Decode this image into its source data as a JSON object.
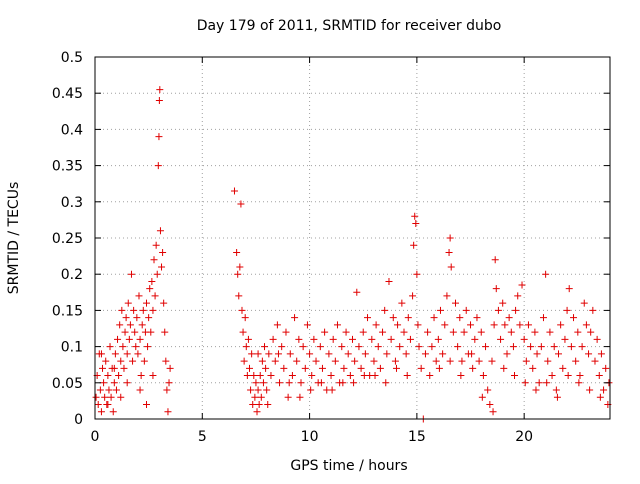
{
  "chart_data": {
    "type": "scatter",
    "title": "Day 179 of 2011, SRMTID for receiver dubo",
    "xlabel": "GPS time / hours",
    "ylabel": "SRMTID / TECUs",
    "xlim": [
      0,
      24
    ],
    "ylim": [
      0,
      0.5
    ],
    "xticks": [
      0,
      5,
      10,
      15,
      20
    ],
    "xtick_labels": [
      "0",
      "5",
      "10",
      "15",
      "20"
    ],
    "yticks": [
      0,
      0.05,
      0.1,
      0.15,
      0.2,
      0.25,
      0.3,
      0.35,
      0.4,
      0.45,
      0.5
    ],
    "ytick_labels": [
      "0",
      "0.05",
      "0.1",
      "0.15",
      "0.2",
      "0.25",
      "0.3",
      "0.35",
      "0.4",
      "0.45",
      "0.5"
    ],
    "grid": true,
    "marker": "plus",
    "color": "#e00000",
    "series": [
      {
        "name": "SRMTID",
        "points": [
          [
            0.05,
            0.03
          ],
          [
            0.1,
            0.06
          ],
          [
            0.15,
            0.02
          ],
          [
            0.2,
            0.09
          ],
          [
            0.25,
            0.04
          ],
          [
            0.3,
            0.01
          ],
          [
            0.35,
            0.07
          ],
          [
            0.4,
            0.05
          ],
          [
            0.45,
            0.03
          ],
          [
            0.5,
            0.08
          ],
          [
            0.55,
            0.02
          ],
          [
            0.6,
            0.06
          ],
          [
            0.65,
            0.04
          ],
          [
            0.7,
            0.1
          ],
          [
            0.75,
            0.03
          ],
          [
            0.8,
            0.07
          ],
          [
            0.85,
            0.01
          ],
          [
            0.9,
            0.05
          ],
          [
            0.95,
            0.09
          ],
          [
            1.0,
            0.04
          ],
          [
            1.05,
            0.11
          ],
          [
            1.1,
            0.06
          ],
          [
            1.15,
            0.13
          ],
          [
            1.2,
            0.08
          ],
          [
            1.25,
            0.15
          ],
          [
            1.3,
            0.1
          ],
          [
            1.35,
            0.07
          ],
          [
            1.4,
            0.12
          ],
          [
            1.45,
            0.14
          ],
          [
            1.5,
            0.09
          ],
          [
            1.55,
            0.16
          ],
          [
            1.6,
            0.11
          ],
          [
            1.65,
            0.13
          ],
          [
            1.7,
            0.2
          ],
          [
            1.75,
            0.08
          ],
          [
            1.8,
            0.15
          ],
          [
            1.85,
            0.12
          ],
          [
            1.9,
            0.1
          ],
          [
            1.95,
            0.14
          ],
          [
            2.0,
            0.09
          ],
          [
            2.05,
            0.17
          ],
          [
            2.1,
            0.11
          ],
          [
            2.15,
            0.06
          ],
          [
            2.2,
            0.13
          ],
          [
            2.25,
            0.15
          ],
          [
            2.3,
            0.08
          ],
          [
            2.35,
            0.12
          ],
          [
            2.4,
            0.16
          ],
          [
            2.45,
            0.1
          ],
          [
            2.5,
            0.14
          ],
          [
            2.55,
            0.18
          ],
          [
            2.6,
            0.12
          ],
          [
            2.65,
            0.19
          ],
          [
            2.7,
            0.15
          ],
          [
            2.75,
            0.22
          ],
          [
            2.8,
            0.17
          ],
          [
            2.85,
            0.24
          ],
          [
            2.9,
            0.2
          ],
          [
            2.95,
            0.35
          ],
          [
            2.98,
            0.39
          ],
          [
            3.0,
            0.44
          ],
          [
            3.02,
            0.455
          ],
          [
            3.05,
            0.26
          ],
          [
            3.1,
            0.21
          ],
          [
            3.15,
            0.23
          ],
          [
            3.2,
            0.16
          ],
          [
            3.25,
            0.12
          ],
          [
            3.3,
            0.08
          ],
          [
            3.35,
            0.04
          ],
          [
            3.4,
            0.01
          ],
          [
            3.45,
            0.05
          ],
          [
            3.5,
            0.07
          ],
          [
            0.3,
            0.09
          ],
          [
            0.6,
            0.02
          ],
          [
            0.9,
            0.07
          ],
          [
            1.2,
            0.03
          ],
          [
            1.5,
            0.05
          ],
          [
            2.1,
            0.04
          ],
          [
            2.4,
            0.02
          ],
          [
            2.7,
            0.06
          ],
          [
            6.5,
            0.315
          ],
          [
            6.6,
            0.23
          ],
          [
            6.65,
            0.2
          ],
          [
            6.7,
            0.17
          ],
          [
            6.75,
            0.21
          ],
          [
            6.8,
            0.297
          ],
          [
            6.85,
            0.15
          ],
          [
            6.9,
            0.12
          ],
          [
            6.95,
            0.08
          ],
          [
            7.0,
            0.14
          ],
          [
            7.05,
            0.1
          ],
          [
            7.1,
            0.06
          ],
          [
            7.15,
            0.11
          ],
          [
            7.2,
            0.07
          ],
          [
            7.25,
            0.04
          ],
          [
            7.3,
            0.09
          ],
          [
            7.35,
            0.02
          ],
          [
            7.4,
            0.06
          ],
          [
            7.45,
            0.03
          ],
          [
            7.5,
            0.05
          ],
          [
            7.55,
            0.01
          ],
          [
            7.6,
            0.04
          ],
          [
            7.65,
            0.02
          ],
          [
            7.7,
            0.06
          ],
          [
            7.75,
            0.03
          ],
          [
            7.8,
            0.08
          ],
          [
            7.85,
            0.05
          ],
          [
            7.9,
            0.1
          ],
          [
            7.95,
            0.07
          ],
          [
            8.0,
            0.04
          ],
          [
            8.1,
            0.09
          ],
          [
            8.2,
            0.06
          ],
          [
            8.3,
            0.11
          ],
          [
            8.4,
            0.08
          ],
          [
            8.5,
            0.13
          ],
          [
            8.6,
            0.05
          ],
          [
            8.7,
            0.1
          ],
          [
            8.8,
            0.07
          ],
          [
            8.9,
            0.12
          ],
          [
            9.0,
            0.03
          ],
          [
            9.1,
            0.09
          ],
          [
            9.2,
            0.06
          ],
          [
            9.3,
            0.14
          ],
          [
            9.4,
            0.08
          ],
          [
            9.5,
            0.11
          ],
          [
            9.6,
            0.05
          ],
          [
            9.7,
            0.1
          ],
          [
            9.8,
            0.07
          ],
          [
            9.9,
            0.13
          ],
          [
            10.0,
            0.09
          ],
          [
            10.1,
            0.06
          ],
          [
            10.2,
            0.11
          ],
          [
            10.3,
            0.08
          ],
          [
            10.4,
            0.05
          ],
          [
            10.5,
            0.1
          ],
          [
            10.6,
            0.07
          ],
          [
            10.7,
            0.12
          ],
          [
            10.8,
            0.04
          ],
          [
            10.9,
            0.09
          ],
          [
            11.0,
            0.06
          ],
          [
            11.1,
            0.11
          ],
          [
            11.2,
            0.08
          ],
          [
            11.3,
            0.13
          ],
          [
            11.4,
            0.05
          ],
          [
            11.5,
            0.1
          ],
          [
            11.6,
            0.07
          ],
          [
            11.7,
            0.12
          ],
          [
            11.8,
            0.09
          ],
          [
            11.9,
            0.06
          ],
          [
            12.0,
            0.11
          ],
          [
            12.1,
            0.08
          ],
          [
            12.2,
            0.175
          ],
          [
            12.3,
            0.1
          ],
          [
            12.4,
            0.07
          ],
          [
            12.5,
            0.12
          ],
          [
            12.6,
            0.09
          ],
          [
            12.7,
            0.14
          ],
          [
            12.8,
            0.06
          ],
          [
            12.9,
            0.11
          ],
          [
            13.0,
            0.08
          ],
          [
            13.1,
            0.13
          ],
          [
            13.2,
            0.1
          ],
          [
            13.3,
            0.07
          ],
          [
            13.4,
            0.12
          ],
          [
            13.5,
            0.15
          ],
          [
            13.6,
            0.09
          ],
          [
            13.7,
            0.19
          ],
          [
            13.8,
            0.11
          ],
          [
            13.9,
            0.14
          ],
          [
            14.0,
            0.08
          ],
          [
            14.1,
            0.13
          ],
          [
            14.2,
            0.1
          ],
          [
            14.3,
            0.16
          ],
          [
            14.4,
            0.12
          ],
          [
            14.5,
            0.09
          ],
          [
            14.6,
            0.14
          ],
          [
            14.7,
            0.11
          ],
          [
            14.8,
            0.17
          ],
          [
            14.85,
            0.24
          ],
          [
            14.9,
            0.28
          ],
          [
            14.95,
            0.27
          ],
          [
            15.0,
            0.2
          ],
          [
            15.05,
            0.13
          ],
          [
            15.1,
            0.1
          ],
          [
            15.2,
            0.07
          ],
          [
            15.3,
            0.0
          ],
          [
            15.4,
            0.09
          ],
          [
            15.5,
            0.12
          ],
          [
            15.6,
            0.06
          ],
          [
            15.7,
            0.1
          ],
          [
            15.8,
            0.14
          ],
          [
            15.9,
            0.08
          ],
          [
            16.0,
            0.11
          ],
          [
            16.1,
            0.15
          ],
          [
            16.2,
            0.09
          ],
          [
            16.3,
            0.13
          ],
          [
            16.4,
            0.17
          ],
          [
            16.5,
            0.23
          ],
          [
            16.55,
            0.25
          ],
          [
            16.6,
            0.21
          ],
          [
            16.7,
            0.12
          ],
          [
            16.8,
            0.16
          ],
          [
            16.9,
            0.1
          ],
          [
            17.0,
            0.14
          ],
          [
            17.1,
            0.08
          ],
          [
            17.2,
            0.12
          ],
          [
            17.3,
            0.15
          ],
          [
            17.4,
            0.09
          ],
          [
            17.5,
            0.13
          ],
          [
            17.6,
            0.07
          ],
          [
            17.7,
            0.11
          ],
          [
            17.8,
            0.14
          ],
          [
            17.9,
            0.08
          ],
          [
            18.0,
            0.12
          ],
          [
            18.1,
            0.06
          ],
          [
            18.2,
            0.1
          ],
          [
            18.3,
            0.04
          ],
          [
            18.4,
            0.02
          ],
          [
            18.5,
            0.08
          ],
          [
            18.6,
            0.13
          ],
          [
            18.65,
            0.22
          ],
          [
            18.7,
            0.18
          ],
          [
            18.8,
            0.15
          ],
          [
            18.9,
            0.11
          ],
          [
            19.0,
            0.16
          ],
          [
            19.1,
            0.13
          ],
          [
            19.2,
            0.09
          ],
          [
            19.3,
            0.14
          ],
          [
            19.4,
            0.12
          ],
          [
            19.5,
            0.1
          ],
          [
            19.6,
            0.15
          ],
          [
            19.7,
            0.17
          ],
          [
            19.8,
            0.13
          ],
          [
            19.9,
            0.185
          ],
          [
            20.0,
            0.11
          ],
          [
            20.1,
            0.08
          ],
          [
            20.2,
            0.13
          ],
          [
            20.3,
            0.1
          ],
          [
            20.4,
            0.07
          ],
          [
            20.5,
            0.12
          ],
          [
            20.6,
            0.09
          ],
          [
            20.7,
            0.05
          ],
          [
            20.8,
            0.1
          ],
          [
            20.9,
            0.14
          ],
          [
            21.0,
            0.2
          ],
          [
            21.1,
            0.08
          ],
          [
            21.2,
            0.12
          ],
          [
            21.3,
            0.06
          ],
          [
            21.4,
            0.1
          ],
          [
            21.5,
            0.04
          ],
          [
            21.6,
            0.09
          ],
          [
            21.7,
            0.13
          ],
          [
            21.8,
            0.07
          ],
          [
            21.9,
            0.11
          ],
          [
            22.0,
            0.15
          ],
          [
            22.1,
            0.18
          ],
          [
            22.2,
            0.1
          ],
          [
            22.3,
            0.14
          ],
          [
            22.4,
            0.08
          ],
          [
            22.5,
            0.12
          ],
          [
            22.6,
            0.06
          ],
          [
            22.7,
            0.1
          ],
          [
            22.8,
            0.16
          ],
          [
            22.9,
            0.13
          ],
          [
            23.0,
            0.09
          ],
          [
            23.1,
            0.12
          ],
          [
            23.2,
            0.15
          ],
          [
            23.3,
            0.08
          ],
          [
            23.4,
            0.11
          ],
          [
            23.5,
            0.06
          ],
          [
            23.6,
            0.09
          ],
          [
            23.7,
            0.04
          ],
          [
            23.8,
            0.07
          ],
          [
            23.9,
            0.02
          ],
          [
            23.95,
            0.05
          ],
          [
            7.6,
            0.09
          ],
          [
            8.05,
            0.02
          ],
          [
            8.55,
            0.09
          ],
          [
            9.05,
            0.05
          ],
          [
            9.55,
            0.03
          ],
          [
            10.05,
            0.04
          ],
          [
            10.55,
            0.05
          ],
          [
            11.05,
            0.04
          ],
          [
            11.55,
            0.05
          ],
          [
            12.05,
            0.05
          ],
          [
            12.55,
            0.06
          ],
          [
            13.05,
            0.06
          ],
          [
            13.55,
            0.05
          ],
          [
            14.05,
            0.07
          ],
          [
            14.55,
            0.06
          ],
          [
            16.05,
            0.07
          ],
          [
            16.55,
            0.08
          ],
          [
            17.05,
            0.06
          ],
          [
            17.55,
            0.09
          ],
          [
            18.05,
            0.03
          ],
          [
            18.55,
            0.01
          ],
          [
            19.05,
            0.07
          ],
          [
            19.55,
            0.06
          ],
          [
            20.05,
            0.05
          ],
          [
            20.55,
            0.04
          ],
          [
            21.05,
            0.05
          ],
          [
            21.55,
            0.03
          ],
          [
            22.05,
            0.06
          ],
          [
            22.55,
            0.05
          ],
          [
            23.05,
            0.04
          ],
          [
            23.55,
            0.03
          ]
        ]
      }
    ]
  }
}
